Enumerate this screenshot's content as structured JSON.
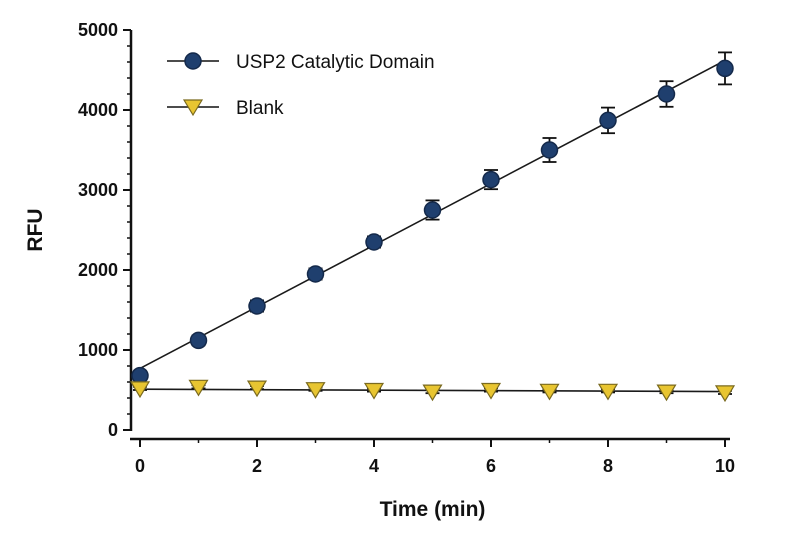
{
  "chart_data": {
    "type": "scatter",
    "xlabel": "Time (min)",
    "ylabel": "RFU",
    "xlim": [
      0,
      10
    ],
    "ylim": [
      0,
      5000
    ],
    "x_ticks": [
      "0",
      "2",
      "4",
      "6",
      "8",
      "10"
    ],
    "y_ticks": [
      "0",
      "1000",
      "2000",
      "3000",
      "4000",
      "5000"
    ],
    "grid": false,
    "legend_position": "top-left",
    "series": [
      {
        "name": "USP2 Catalytic Domain",
        "marker": "circle",
        "color": "#1f3f6e",
        "x": [
          0,
          1,
          2,
          3,
          4,
          5,
          6,
          7,
          8,
          9,
          10
        ],
        "y": [
          680,
          1120,
          1550,
          1950,
          2350,
          2750,
          3130,
          3500,
          3870,
          4200,
          4520
        ],
        "error": [
          50,
          60,
          70,
          70,
          70,
          120,
          120,
          150,
          160,
          160,
          200
        ],
        "fit_line": [
          770,
          4620
        ]
      },
      {
        "name": "Blank",
        "marker": "triangle-down",
        "color": "#e8c531",
        "x": [
          0,
          1,
          2,
          3,
          4,
          5,
          6,
          7,
          8,
          9,
          10
        ],
        "y": [
          520,
          540,
          530,
          510,
          500,
          480,
          500,
          490,
          490,
          480,
          470
        ],
        "error": [
          20,
          20,
          20,
          20,
          20,
          20,
          20,
          20,
          20,
          20,
          20
        ],
        "fit_line": [
          510,
          480
        ]
      }
    ]
  }
}
